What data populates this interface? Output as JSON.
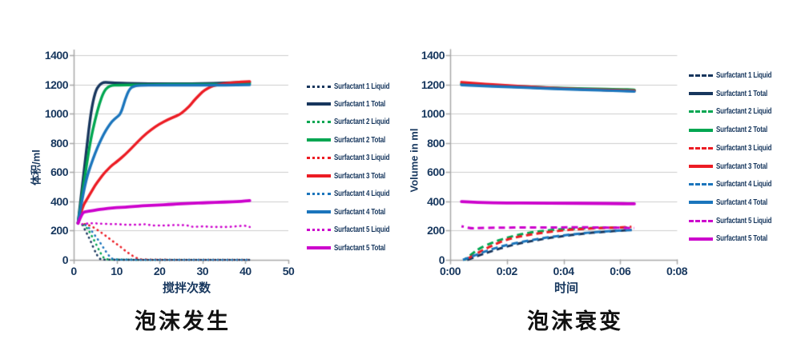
{
  "figure": {
    "background": "#ffffff",
    "text_color": "#17375e",
    "grid_color": "#cdcdcd",
    "axis_color": "#a8a8a8",
    "title_color": "#111111"
  },
  "chart_data": [
    {
      "type": "line",
      "title": "泡沫发生",
      "xlabel": "搅拌次数",
      "ylabel": "体积/ml",
      "xlim": [
        0,
        50
      ],
      "ylim": [
        0,
        1400
      ],
      "xticks": [
        0,
        10,
        20,
        30,
        40,
        50
      ],
      "xtick_labels": [
        "0",
        "10",
        "20",
        "30",
        "40",
        "50"
      ],
      "yticks": [
        0,
        200,
        400,
        600,
        800,
        1000,
        1200,
        1400
      ],
      "grid": true,
      "legend_position": "right",
      "series": [
        {
          "name": "Surfactant 1 Liquid",
          "color": "#17365d",
          "style": "dotted",
          "x": [
            2,
            3,
            4,
            5,
            6,
            7,
            41
          ],
          "y": [
            240,
            185,
            125,
            55,
            5,
            0,
            0
          ]
        },
        {
          "name": "Surfactant 1 Total",
          "color": "#17365d",
          "style": "solid",
          "x": [
            1,
            2,
            3,
            4,
            5,
            6,
            7,
            8,
            10,
            15,
            20,
            25,
            30,
            35,
            41
          ],
          "y": [
            250,
            500,
            760,
            1010,
            1150,
            1200,
            1215,
            1213,
            1210,
            1205,
            1205,
            1205,
            1205,
            1210,
            1215
          ]
        },
        {
          "name": "Surfactant 2 Liquid",
          "color": "#00a651",
          "style": "dotted",
          "x": [
            2,
            3,
            4,
            5,
            6,
            7,
            8,
            41
          ],
          "y": [
            245,
            225,
            175,
            120,
            60,
            10,
            0,
            0
          ]
        },
        {
          "name": "Surfactant 2 Total",
          "color": "#00a651",
          "style": "solid",
          "x": [
            1,
            2,
            3,
            4,
            5,
            6,
            7,
            8,
            9,
            10,
            15,
            20,
            25,
            30,
            35,
            41
          ],
          "y": [
            250,
            450,
            650,
            830,
            960,
            1070,
            1150,
            1185,
            1193,
            1195,
            1197,
            1200,
            1200,
            1200,
            1200,
            1205
          ]
        },
        {
          "name": "Surfactant 3 Liquid",
          "color": "#ec1c24",
          "style": "dotted",
          "x": [
            2,
            3,
            4,
            5,
            6,
            7,
            8,
            9,
            10,
            11,
            12,
            13,
            14,
            15,
            16,
            41
          ],
          "y": [
            248,
            242,
            232,
            215,
            195,
            175,
            152,
            130,
            108,
            88,
            62,
            42,
            22,
            8,
            0,
            0
          ]
        },
        {
          "name": "Surfactant 3 Total",
          "color": "#ec1c24",
          "style": "solid",
          "x": [
            1,
            2,
            3,
            4,
            5,
            6,
            7,
            8,
            9,
            10,
            12,
            14,
            16,
            18,
            20,
            22,
            24,
            25,
            27,
            28,
            29,
            30,
            31,
            32,
            33,
            35,
            37,
            39,
            41
          ],
          "y": [
            250,
            360,
            410,
            460,
            510,
            550,
            590,
            620,
            650,
            670,
            720,
            780,
            840,
            890,
            930,
            960,
            985,
            1000,
            1050,
            1090,
            1120,
            1150,
            1170,
            1185,
            1195,
            1205,
            1212,
            1218,
            1220
          ]
        },
        {
          "name": "Surfactant 4 Liquid",
          "color": "#1b75bc",
          "style": "dotted",
          "x": [
            2,
            3,
            4,
            5,
            6,
            7,
            8,
            9,
            10,
            41
          ],
          "y": [
            250,
            235,
            205,
            165,
            125,
            80,
            35,
            5,
            0,
            0
          ]
        },
        {
          "name": "Surfactant 4 Total",
          "color": "#1b75bc",
          "style": "solid",
          "x": [
            1,
            2,
            3,
            4,
            5,
            6,
            7,
            8,
            9,
            10,
            11,
            12,
            13,
            14,
            15,
            20,
            25,
            30,
            35,
            41
          ],
          "y": [
            250,
            420,
            560,
            650,
            730,
            800,
            860,
            910,
            950,
            975,
            1000,
            1100,
            1170,
            1188,
            1193,
            1195,
            1195,
            1195,
            1195,
            1197
          ]
        },
        {
          "name": "Surfactant 5 Liquid",
          "color": "#cc00cc",
          "style": "dotted",
          "x": [
            2,
            3,
            4,
            5,
            6,
            8,
            10,
            12,
            14,
            16,
            17,
            18,
            20,
            22,
            24,
            25,
            26,
            27,
            28,
            30,
            32,
            34,
            36,
            38,
            40,
            41
          ],
          "y": [
            245,
            248,
            250,
            250,
            248,
            245,
            245,
            240,
            240,
            242,
            245,
            235,
            235,
            235,
            240,
            235,
            240,
            230,
            225,
            230,
            225,
            225,
            225,
            230,
            235,
            225
          ]
        },
        {
          "name": "Surfactant 5 Total",
          "color": "#cc00cc",
          "style": "solid",
          "x": [
            1,
            2,
            3,
            4,
            5,
            6,
            8,
            10,
            12,
            14,
            16,
            18,
            20,
            22,
            24,
            26,
            28,
            30,
            32,
            34,
            36,
            38,
            40,
            41
          ],
          "y": [
            250,
            325,
            330,
            335,
            340,
            345,
            352,
            357,
            360,
            365,
            370,
            372,
            375,
            378,
            382,
            385,
            387,
            390,
            392,
            394,
            396,
            398,
            402,
            405
          ]
        }
      ]
    },
    {
      "type": "line",
      "title": "泡沫衰变",
      "xlabel": "时间",
      "ylabel": "Volume in ml",
      "xlim": [
        0,
        8
      ],
      "ylim": [
        0,
        1400
      ],
      "xticks": [
        0,
        2,
        4,
        6,
        8
      ],
      "xtick_labels": [
        "0:00",
        "0:02",
        "0:04",
        "0:06",
        "0:08"
      ],
      "yticks": [
        0,
        200,
        400,
        600,
        800,
        1000,
        1200,
        1400
      ],
      "grid": true,
      "legend_position": "right",
      "series": [
        {
          "name": "Surfactant 1 Liquid",
          "color": "#17365d",
          "style": "dashed",
          "x": [
            0.6,
            1,
            1.5,
            2,
            2.5,
            3,
            3.5,
            4,
            4.5,
            5,
            5.5,
            6,
            6.4
          ],
          "y": [
            0,
            30,
            62,
            92,
            115,
            133,
            150,
            163,
            175,
            185,
            193,
            200,
            205
          ]
        },
        {
          "name": "Surfactant 1 Total",
          "color": "#17365d",
          "style": "solid",
          "x": [
            0.4,
            1,
            2,
            3,
            4,
            5,
            6,
            6.5
          ],
          "y": [
            1205,
            1197,
            1186,
            1178,
            1171,
            1165,
            1160,
            1158
          ]
        },
        {
          "name": "Surfactant 2 Liquid",
          "color": "#00a651",
          "style": "dashed",
          "x": [
            0.5,
            0.8,
            1,
            1.5,
            2,
            2.5,
            3,
            3.5,
            4,
            4.5,
            5,
            5.5,
            6,
            6.3
          ],
          "y": [
            0,
            45,
            75,
            120,
            152,
            175,
            192,
            203,
            210,
            215,
            218,
            220,
            221,
            222
          ]
        },
        {
          "name": "Surfactant 2 Total",
          "color": "#00a651",
          "style": "solid",
          "x": [
            0.4,
            1,
            2,
            3,
            4,
            5,
            6,
            6.5
          ],
          "y": [
            1200,
            1196,
            1189,
            1181,
            1175,
            1170,
            1166,
            1163
          ]
        },
        {
          "name": "Surfactant 3 Liquid",
          "color": "#ec1c24",
          "style": "dashed",
          "x": [
            0.55,
            0.9,
            1.2,
            1.5,
            2,
            2.5,
            3,
            3.5,
            4,
            4.5,
            5,
            5.5,
            6,
            6.4
          ],
          "y": [
            0,
            40,
            70,
            100,
            140,
            162,
            178,
            192,
            202,
            210,
            215,
            219,
            222,
            226
          ]
        },
        {
          "name": "Surfactant 3 Total",
          "color": "#ec1c24",
          "style": "solid",
          "x": [
            0.4,
            1,
            2,
            3,
            4,
            5,
            6,
            6.5
          ],
          "y": [
            1215,
            1206,
            1193,
            1181,
            1172,
            1165,
            1160,
            1157
          ]
        },
        {
          "name": "Surfactant 4 Liquid",
          "color": "#1b75bc",
          "style": "dashed",
          "x": [
            0.45,
            0.8,
            1.2,
            1.6,
            2,
            2.5,
            3,
            3.5,
            4,
            4.5,
            5,
            5.5,
            6,
            6.5
          ],
          "y": [
            0,
            25,
            55,
            82,
            102,
            122,
            140,
            155,
            168,
            178,
            188,
            195,
            200,
            205
          ]
        },
        {
          "name": "Surfactant 4 Total",
          "color": "#1b75bc",
          "style": "solid",
          "x": [
            0.4,
            1,
            2,
            3,
            4,
            5,
            6,
            6.5
          ],
          "y": [
            1196,
            1191,
            1183,
            1176,
            1168,
            1161,
            1156,
            1152
          ]
        },
        {
          "name": "Surfactant 5 Liquid",
          "color": "#cc00cc",
          "style": "dashed",
          "x": [
            0.4,
            0.7,
            1,
            1.5,
            2,
            2.5,
            3,
            3.5,
            4,
            4.5,
            5,
            5.5,
            6,
            6.5
          ],
          "y": [
            230,
            215,
            217,
            220,
            220,
            222,
            221,
            222,
            222,
            223,
            222,
            221,
            220,
            217
          ]
        },
        {
          "name": "Surfactant 5 Total",
          "color": "#cc00cc",
          "style": "solid",
          "x": [
            0.4,
            1,
            2,
            3,
            4,
            5,
            6,
            6.5
          ],
          "y": [
            398,
            392,
            389,
            388,
            388,
            386,
            385,
            383
          ]
        }
      ]
    }
  ]
}
